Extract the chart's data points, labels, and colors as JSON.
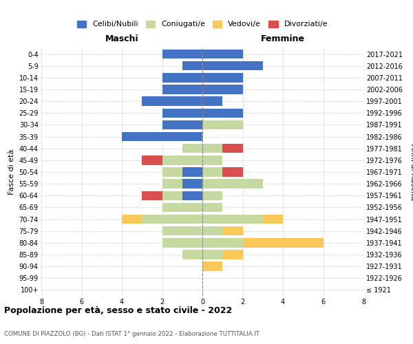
{
  "age_groups": [
    "100+",
    "95-99",
    "90-94",
    "85-89",
    "80-84",
    "75-79",
    "70-74",
    "65-69",
    "60-64",
    "55-59",
    "50-54",
    "45-49",
    "40-44",
    "35-39",
    "30-34",
    "25-29",
    "20-24",
    "15-19",
    "10-14",
    "5-9",
    "0-4"
  ],
  "birth_years": [
    "≤ 1921",
    "1922-1926",
    "1927-1931",
    "1932-1936",
    "1937-1941",
    "1942-1946",
    "1947-1951",
    "1952-1956",
    "1957-1961",
    "1962-1966",
    "1967-1971",
    "1972-1976",
    "1977-1981",
    "1982-1986",
    "1987-1991",
    "1992-1996",
    "1997-2001",
    "2002-2006",
    "2007-2011",
    "2012-2016",
    "2017-2021"
  ],
  "maschi": {
    "celibi": [
      0,
      0,
      0,
      0,
      0,
      0,
      0,
      0,
      1,
      1,
      1,
      0,
      0,
      4,
      2,
      2,
      3,
      2,
      2,
      1,
      2
    ],
    "coniugati": [
      0,
      0,
      0,
      1,
      2,
      2,
      3,
      2,
      1,
      1,
      1,
      2,
      1,
      0,
      0,
      0,
      0,
      0,
      0,
      0,
      0
    ],
    "vedovi": [
      0,
      0,
      0,
      0,
      0,
      0,
      1,
      0,
      0,
      0,
      0,
      0,
      0,
      0,
      0,
      0,
      0,
      0,
      0,
      0,
      0
    ],
    "divorziati": [
      0,
      0,
      0,
      0,
      0,
      0,
      0,
      0,
      1,
      0,
      0,
      1,
      0,
      0,
      0,
      0,
      0,
      0,
      0,
      0,
      0
    ]
  },
  "femmine": {
    "nubili": [
      0,
      0,
      0,
      0,
      0,
      0,
      0,
      0,
      0,
      0,
      0,
      0,
      0,
      0,
      0,
      2,
      1,
      2,
      2,
      3,
      2
    ],
    "coniugate": [
      0,
      0,
      0,
      1,
      2,
      1,
      3,
      1,
      1,
      3,
      1,
      1,
      1,
      0,
      2,
      0,
      0,
      0,
      0,
      0,
      0
    ],
    "vedove": [
      0,
      0,
      1,
      1,
      4,
      1,
      1,
      0,
      0,
      0,
      0,
      0,
      0,
      0,
      0,
      0,
      0,
      0,
      0,
      0,
      0
    ],
    "divorziate": [
      0,
      0,
      0,
      0,
      0,
      0,
      0,
      0,
      0,
      0,
      1,
      0,
      1,
      0,
      0,
      0,
      0,
      0,
      0,
      0,
      0
    ]
  },
  "colors": {
    "celibi_nubili": "#4472C4",
    "coniugati": "#C5D9A0",
    "vedovi": "#FAC858",
    "divorziati": "#D94F4F"
  },
  "title": "Popolazione per età, sesso e stato civile - 2022",
  "subtitle": "COMUNE DI PIAZZOLO (BG) - Dati ISTAT 1° gennaio 2022 - Elaborazione TUTTITALIA.IT",
  "xlabel_left": "Maschi",
  "xlabel_right": "Femmine",
  "ylabel_left": "Fasce di età",
  "ylabel_right": "Anni di nascita",
  "xlim": 8,
  "background_color": "#ffffff"
}
